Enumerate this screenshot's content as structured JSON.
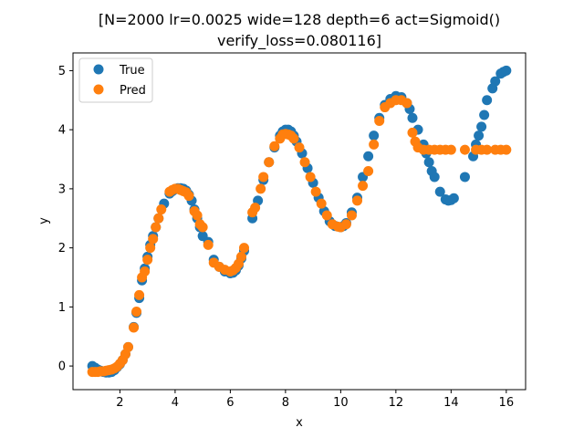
{
  "chart_data": {
    "type": "scatter",
    "title_lines": [
      "[N=2000 lr=0.0025 wide=128 depth=6 act=Sigmoid()",
      "verify_loss=0.080116]"
    ],
    "xlabel": "x",
    "ylabel": "y",
    "xlim": [
      0.3,
      16.7
    ],
    "ylim": [
      -0.4,
      5.3
    ],
    "xticks": [
      2,
      4,
      6,
      8,
      10,
      12,
      14,
      16
    ],
    "yticks": [
      0,
      1,
      2,
      3,
      4,
      5
    ],
    "grid": false,
    "legend_position": "top-left",
    "series": [
      {
        "name": "True",
        "color": "#1f77b4",
        "points": [
          [
            1.0,
            0.0
          ],
          [
            1.1,
            -0.03
          ],
          [
            1.2,
            -0.06
          ],
          [
            1.3,
            -0.08
          ],
          [
            1.4,
            -0.1
          ],
          [
            1.5,
            -0.11
          ],
          [
            1.6,
            -0.11
          ],
          [
            1.7,
            -0.1
          ],
          [
            1.8,
            -0.07
          ],
          [
            1.9,
            -0.02
          ],
          [
            2.0,
            0.03
          ],
          [
            2.1,
            0.1
          ],
          [
            2.2,
            0.2
          ],
          [
            2.3,
            0.32
          ],
          [
            2.5,
            0.66
          ],
          [
            2.6,
            0.9
          ],
          [
            2.7,
            1.15
          ],
          [
            2.8,
            1.45
          ],
          [
            2.9,
            1.65
          ],
          [
            3.0,
            1.85
          ],
          [
            3.1,
            2.05
          ],
          [
            3.2,
            2.2
          ],
          [
            3.3,
            2.35
          ],
          [
            3.4,
            2.5
          ],
          [
            3.6,
            2.75
          ],
          [
            3.8,
            2.92
          ],
          [
            3.9,
            2.96
          ],
          [
            4.0,
            2.99
          ],
          [
            4.1,
            3.01
          ],
          [
            4.2,
            3.01
          ],
          [
            4.3,
            3.0
          ],
          [
            4.4,
            2.97
          ],
          [
            4.5,
            2.9
          ],
          [
            4.6,
            2.8
          ],
          [
            4.7,
            2.65
          ],
          [
            4.8,
            2.5
          ],
          [
            4.9,
            2.35
          ],
          [
            5.0,
            2.2
          ],
          [
            5.2,
            2.1
          ],
          [
            5.4,
            1.8
          ],
          [
            5.6,
            1.68
          ],
          [
            5.8,
            1.6
          ],
          [
            6.0,
            1.57
          ],
          [
            6.1,
            1.58
          ],
          [
            6.2,
            1.62
          ],
          [
            6.3,
            1.7
          ],
          [
            6.4,
            1.82
          ],
          [
            6.5,
            1.95
          ],
          [
            6.8,
            2.5
          ],
          [
            7.0,
            2.8
          ],
          [
            7.2,
            3.15
          ],
          [
            7.4,
            3.45
          ],
          [
            7.6,
            3.7
          ],
          [
            7.8,
            3.9
          ],
          [
            7.9,
            3.97
          ],
          [
            8.0,
            4.0
          ],
          [
            8.1,
            4.0
          ],
          [
            8.2,
            3.97
          ],
          [
            8.3,
            3.9
          ],
          [
            8.4,
            3.8
          ],
          [
            8.6,
            3.6
          ],
          [
            8.8,
            3.35
          ],
          [
            9.0,
            3.1
          ],
          [
            9.2,
            2.85
          ],
          [
            9.4,
            2.62
          ],
          [
            9.6,
            2.45
          ],
          [
            9.8,
            2.37
          ],
          [
            10.0,
            2.35
          ],
          [
            10.1,
            2.37
          ],
          [
            10.2,
            2.42
          ],
          [
            10.4,
            2.6
          ],
          [
            10.6,
            2.85
          ],
          [
            10.8,
            3.2
          ],
          [
            11.0,
            3.55
          ],
          [
            11.2,
            3.9
          ],
          [
            11.4,
            4.2
          ],
          [
            11.6,
            4.42
          ],
          [
            11.8,
            4.52
          ],
          [
            12.0,
            4.57
          ],
          [
            12.2,
            4.55
          ],
          [
            12.4,
            4.45
          ],
          [
            12.5,
            4.35
          ],
          [
            12.6,
            4.2
          ],
          [
            12.8,
            4.0
          ],
          [
            13.0,
            3.75
          ],
          [
            13.1,
            3.6
          ],
          [
            13.2,
            3.45
          ],
          [
            13.3,
            3.3
          ],
          [
            13.4,
            3.2
          ],
          [
            13.6,
            2.95
          ],
          [
            13.8,
            2.82
          ],
          [
            13.9,
            2.8
          ],
          [
            14.0,
            2.81
          ],
          [
            14.1,
            2.84
          ],
          [
            14.5,
            3.2
          ],
          [
            14.8,
            3.55
          ],
          [
            14.9,
            3.75
          ],
          [
            15.0,
            3.9
          ],
          [
            15.1,
            4.05
          ],
          [
            15.2,
            4.25
          ],
          [
            15.3,
            4.5
          ],
          [
            15.5,
            4.7
          ],
          [
            15.6,
            4.82
          ],
          [
            15.8,
            4.95
          ],
          [
            15.9,
            4.98
          ],
          [
            16.0,
            5.0
          ]
        ]
      },
      {
        "name": "Pred",
        "color": "#ff7f0e",
        "points": [
          [
            1.0,
            -0.1
          ],
          [
            1.1,
            -0.1
          ],
          [
            1.2,
            -0.1
          ],
          [
            1.3,
            -0.09
          ],
          [
            1.4,
            -0.09
          ],
          [
            1.5,
            -0.08
          ],
          [
            1.6,
            -0.07
          ],
          [
            1.7,
            -0.06
          ],
          [
            1.8,
            -0.04
          ],
          [
            1.9,
            -0.01
          ],
          [
            2.0,
            0.04
          ],
          [
            2.1,
            0.1
          ],
          [
            2.2,
            0.2
          ],
          [
            2.3,
            0.32
          ],
          [
            2.5,
            0.65
          ],
          [
            2.6,
            0.92
          ],
          [
            2.7,
            1.2
          ],
          [
            2.8,
            1.5
          ],
          [
            2.9,
            1.6
          ],
          [
            3.0,
            1.8
          ],
          [
            3.1,
            2.0
          ],
          [
            3.2,
            2.15
          ],
          [
            3.3,
            2.35
          ],
          [
            3.4,
            2.5
          ],
          [
            3.5,
            2.65
          ],
          [
            3.8,
            2.95
          ],
          [
            3.9,
            2.98
          ],
          [
            4.0,
            3.0
          ],
          [
            4.1,
            3.0
          ],
          [
            4.2,
            2.98
          ],
          [
            4.3,
            2.96
          ],
          [
            4.4,
            2.94
          ],
          [
            4.5,
            2.88
          ],
          [
            4.7,
            2.62
          ],
          [
            4.8,
            2.55
          ],
          [
            4.9,
            2.4
          ],
          [
            5.0,
            2.35
          ],
          [
            5.2,
            2.05
          ],
          [
            5.4,
            1.75
          ],
          [
            5.6,
            1.68
          ],
          [
            5.8,
            1.63
          ],
          [
            6.0,
            1.6
          ],
          [
            6.1,
            1.62
          ],
          [
            6.2,
            1.66
          ],
          [
            6.3,
            1.73
          ],
          [
            6.4,
            1.85
          ],
          [
            6.5,
            2.0
          ],
          [
            6.8,
            2.6
          ],
          [
            6.9,
            2.68
          ],
          [
            7.1,
            3.0
          ],
          [
            7.2,
            3.2
          ],
          [
            7.4,
            3.45
          ],
          [
            7.6,
            3.72
          ],
          [
            7.8,
            3.85
          ],
          [
            7.9,
            3.92
          ],
          [
            8.0,
            3.93
          ],
          [
            8.1,
            3.92
          ],
          [
            8.2,
            3.9
          ],
          [
            8.3,
            3.85
          ],
          [
            8.5,
            3.7
          ],
          [
            8.7,
            3.45
          ],
          [
            8.9,
            3.2
          ],
          [
            9.1,
            2.95
          ],
          [
            9.3,
            2.75
          ],
          [
            9.5,
            2.55
          ],
          [
            9.7,
            2.4
          ],
          [
            9.9,
            2.36
          ],
          [
            10.0,
            2.35
          ],
          [
            10.2,
            2.4
          ],
          [
            10.4,
            2.55
          ],
          [
            10.6,
            2.8
          ],
          [
            10.8,
            3.05
          ],
          [
            11.0,
            3.3
          ],
          [
            11.2,
            3.75
          ],
          [
            11.4,
            4.15
          ],
          [
            11.6,
            4.38
          ],
          [
            11.8,
            4.45
          ],
          [
            12.0,
            4.5
          ],
          [
            12.2,
            4.5
          ],
          [
            12.4,
            4.45
          ],
          [
            12.6,
            3.95
          ],
          [
            12.7,
            3.8
          ],
          [
            12.8,
            3.7
          ],
          [
            13.0,
            3.66
          ],
          [
            13.2,
            3.66
          ],
          [
            13.4,
            3.66
          ],
          [
            13.6,
            3.66
          ],
          [
            13.8,
            3.66
          ],
          [
            14.0,
            3.66
          ],
          [
            14.5,
            3.66
          ],
          [
            14.9,
            3.66
          ],
          [
            15.1,
            3.66
          ],
          [
            15.3,
            3.66
          ],
          [
            15.6,
            3.66
          ],
          [
            15.8,
            3.66
          ],
          [
            16.0,
            3.66
          ]
        ]
      }
    ]
  }
}
